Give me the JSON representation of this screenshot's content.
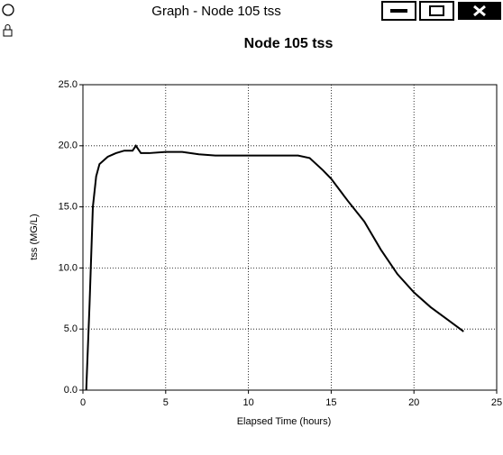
{
  "window": {
    "title": "Graph - Node 105 tss"
  },
  "chart_data": {
    "type": "line",
    "title": "Node 105 tss",
    "x_label": "Elapsed Time (hours)",
    "y_label": "tss (MG/L)",
    "x": [
      0.2,
      0.4,
      0.6,
      0.8,
      1.0,
      1.5,
      2.0,
      2.5,
      3.0,
      3.2,
      3.5,
      4,
      5,
      6,
      7,
      8,
      10,
      12,
      13,
      13.7,
      14.5,
      15,
      16,
      17,
      18,
      19,
      20,
      21,
      22,
      23
    ],
    "series": [
      {
        "name": "tss",
        "color": "#000000",
        "values": [
          0,
          7,
          15,
          17.5,
          18.5,
          19.1,
          19.4,
          19.6,
          19.6,
          20.0,
          19.4,
          19.4,
          19.5,
          19.5,
          19.3,
          19.2,
          19.2,
          19.2,
          19.2,
          19.0,
          18.0,
          17.3,
          15.5,
          13.8,
          11.5,
          9.5,
          8.0,
          6.8,
          5.8,
          4.8
        ]
      }
    ],
    "xlim": [
      0,
      25
    ],
    "xticks": [
      0,
      5,
      10,
      15,
      20,
      25
    ],
    "ylim": [
      0,
      25
    ],
    "yticks": [
      {
        "value": 0,
        "label": "0.0"
      },
      {
        "value": 5,
        "label": "5.0"
      },
      {
        "value": 10,
        "label": "10.0"
      },
      {
        "value": 15,
        "label": "15.0"
      },
      {
        "value": 20,
        "label": "20.0"
      },
      {
        "value": 25,
        "label": "25.0"
      }
    ],
    "grid": true
  }
}
